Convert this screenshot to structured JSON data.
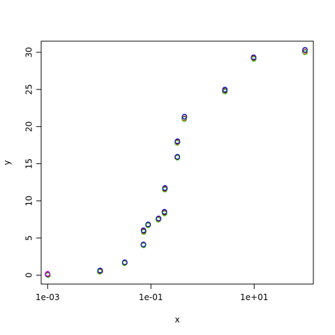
{
  "chart_data": {
    "type": "scatter",
    "title": "",
    "xlabel": "x",
    "ylabel": "y",
    "x_scale": "log10",
    "xlim": [
      0.00075,
      140
    ],
    "ylim": [
      -1.2,
      31.5
    ],
    "x_ticks": [
      {
        "value": 0.001,
        "label": "1e-03"
      },
      {
        "value": 0.1,
        "label": "1e-01"
      },
      {
        "value": 10,
        "label": "1e+01"
      }
    ],
    "y_ticks": [
      {
        "value": 0,
        "label": "0"
      },
      {
        "value": 5,
        "label": "5"
      },
      {
        "value": 10,
        "label": "10"
      },
      {
        "value": 15,
        "label": "15"
      },
      {
        "value": 20,
        "label": "20"
      },
      {
        "value": 25,
        "label": "25"
      },
      {
        "value": 30,
        "label": "30"
      }
    ],
    "grid": false,
    "legend": "none",
    "marker": "open-circle",
    "series": [
      {
        "color": "#000000",
        "points": [
          {
            "x": 0.001,
            "y": 0.1
          },
          {
            "x": 0.0103,
            "y": 0.6
          },
          {
            "x": 0.031,
            "y": 1.7
          },
          {
            "x": 0.072,
            "y": 4.1
          },
          {
            "x": 0.072,
            "y": 6.0
          },
          {
            "x": 0.088,
            "y": 6.8
          },
          {
            "x": 0.14,
            "y": 7.6
          },
          {
            "x": 0.183,
            "y": 8.5
          },
          {
            "x": 0.186,
            "y": 11.7
          },
          {
            "x": 0.325,
            "y": 15.9
          },
          {
            "x": 0.325,
            "y": 18.0
          },
          {
            "x": 0.445,
            "y": 21.3
          },
          {
            "x": 2.7,
            "y": 24.9
          },
          {
            "x": 9.8,
            "y": 29.3
          },
          {
            "x": 96,
            "y": 30.3
          }
        ]
      },
      {
        "color": "#ff0000",
        "points": [
          {
            "x": 0.001,
            "y": 0.05
          },
          {
            "x": 0.0105,
            "y": 0.5
          },
          {
            "x": 0.0315,
            "y": 1.65
          },
          {
            "x": 0.071,
            "y": 4.05
          },
          {
            "x": 0.073,
            "y": 5.9
          },
          {
            "x": 0.089,
            "y": 6.75
          },
          {
            "x": 0.142,
            "y": 7.55
          },
          {
            "x": 0.182,
            "y": 8.4
          },
          {
            "x": 0.188,
            "y": 11.6
          },
          {
            "x": 0.32,
            "y": 15.85
          },
          {
            "x": 0.33,
            "y": 17.9
          },
          {
            "x": 0.44,
            "y": 21.1
          },
          {
            "x": 2.68,
            "y": 24.75
          },
          {
            "x": 9.7,
            "y": 29.2
          },
          {
            "x": 95,
            "y": 30.1
          }
        ]
      },
      {
        "color": "#00cd00",
        "points": [
          {
            "x": 0.00102,
            "y": 0.0
          },
          {
            "x": 0.0102,
            "y": 0.45
          },
          {
            "x": 0.0308,
            "y": 1.6
          },
          {
            "x": 0.0722,
            "y": 4.0
          },
          {
            "x": 0.0725,
            "y": 5.8
          },
          {
            "x": 0.0875,
            "y": 6.7
          },
          {
            "x": 0.139,
            "y": 7.45
          },
          {
            "x": 0.184,
            "y": 8.3
          },
          {
            "x": 0.185,
            "y": 11.5
          },
          {
            "x": 0.327,
            "y": 15.8
          },
          {
            "x": 0.322,
            "y": 17.8
          },
          {
            "x": 0.443,
            "y": 21.0
          },
          {
            "x": 2.72,
            "y": 24.7
          },
          {
            "x": 9.85,
            "y": 29.1
          },
          {
            "x": 97,
            "y": 30.0
          }
        ]
      },
      {
        "color": "#0000ff",
        "points": [
          {
            "x": 0.00099,
            "y": 0.15
          },
          {
            "x": 0.0104,
            "y": 0.65
          },
          {
            "x": 0.0312,
            "y": 1.75
          },
          {
            "x": 0.0715,
            "y": 4.15
          },
          {
            "x": 0.0718,
            "y": 6.05
          },
          {
            "x": 0.0885,
            "y": 6.85
          },
          {
            "x": 0.141,
            "y": 7.65
          },
          {
            "x": 0.1825,
            "y": 8.55
          },
          {
            "x": 0.187,
            "y": 11.75
          },
          {
            "x": 0.326,
            "y": 15.95
          },
          {
            "x": 0.327,
            "y": 18.05
          },
          {
            "x": 0.447,
            "y": 21.35
          },
          {
            "x": 2.71,
            "y": 25.0
          },
          {
            "x": 9.75,
            "y": 29.35
          },
          {
            "x": 96.5,
            "y": 30.35
          }
        ]
      },
      {
        "color": "#ff00ff",
        "points": [
          {
            "x": 0.001,
            "y": 0.2
          }
        ]
      }
    ]
  }
}
